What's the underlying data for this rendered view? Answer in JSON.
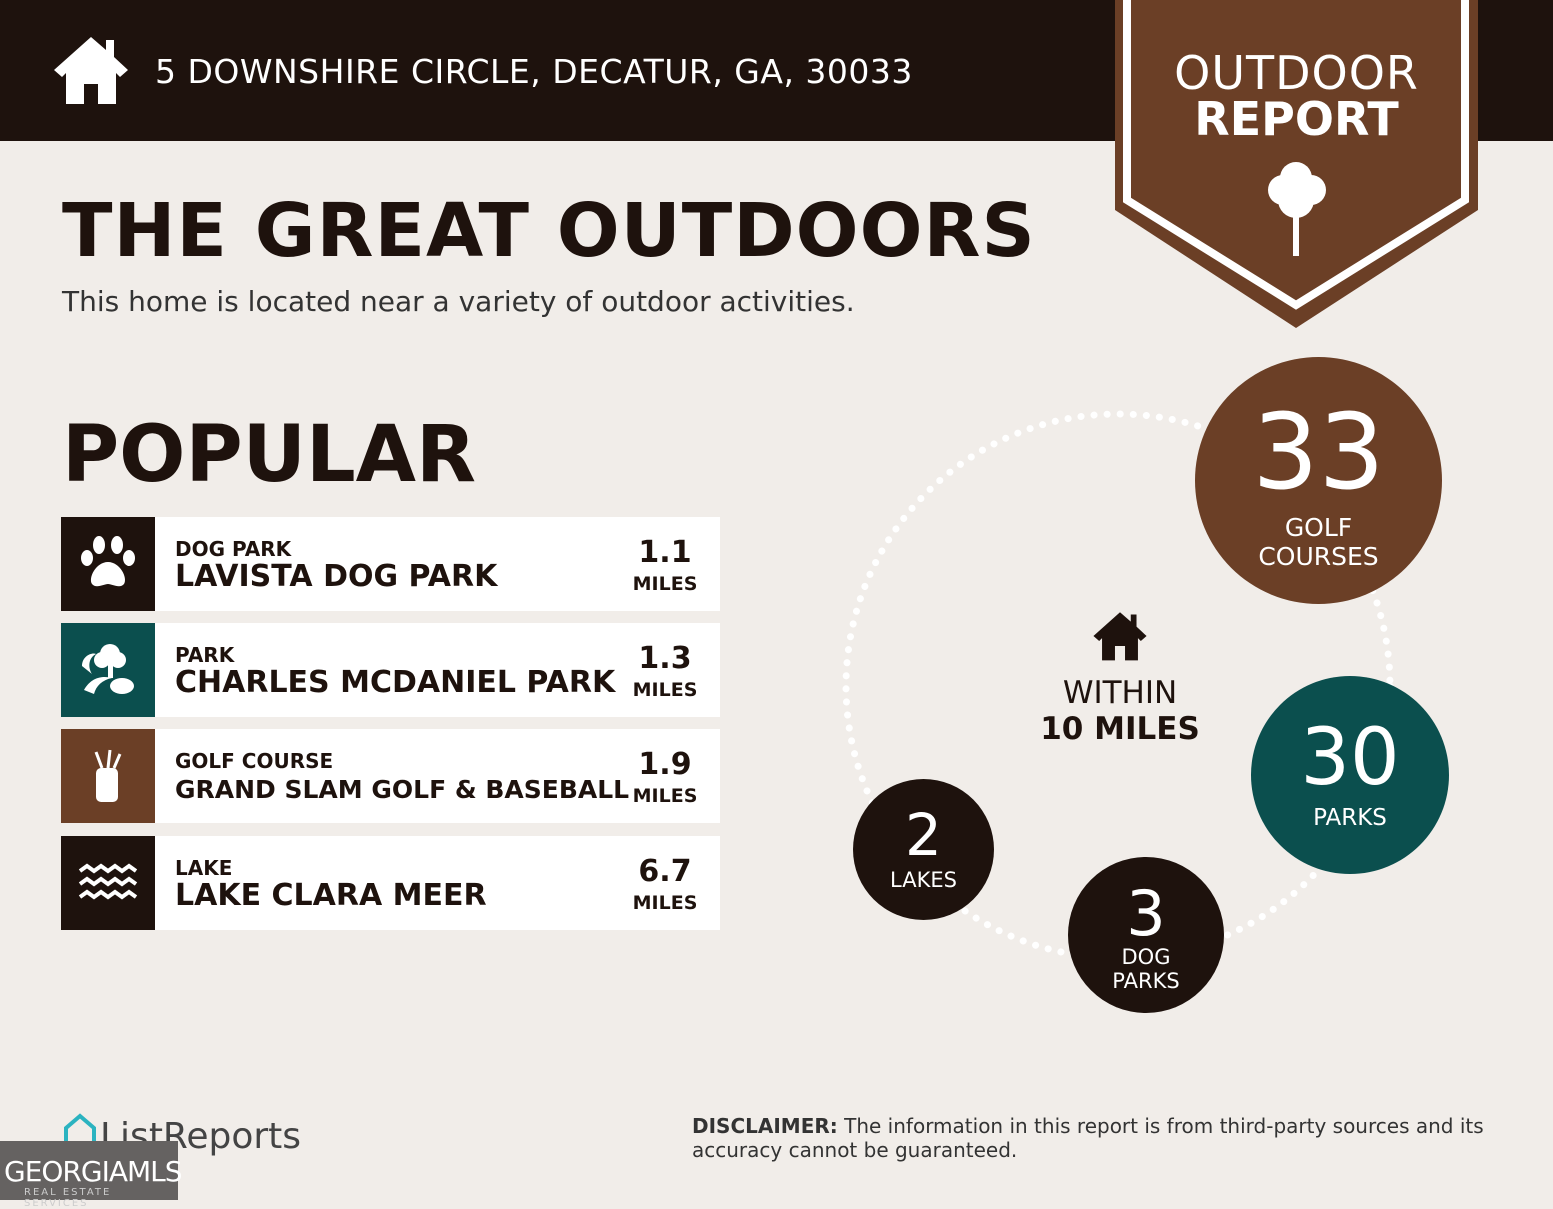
{
  "header": {
    "address": "5 DOWNSHIRE CIRCLE, DECATUR, GA, 30033",
    "icon": "house-icon"
  },
  "badge": {
    "line1": "OUTDOOR",
    "line2": "REPORT",
    "icon": "tree-icon"
  },
  "title": "THE GREAT OUTDOORS",
  "subtitle": "This home is located near a variety of outdoor activities.",
  "popular": {
    "heading": "POPULAR",
    "items": [
      {
        "category": "DOG PARK",
        "name": "LAVISTA DOG PARK",
        "distance": "1.1",
        "unit": "MILES",
        "icon": "paw-icon",
        "color": "#1e120d"
      },
      {
        "category": "PARK",
        "name": "CHARLES MCDANIEL PARK",
        "distance": "1.3",
        "unit": "MILES",
        "icon": "park-icon",
        "color": "#0b4f4e"
      },
      {
        "category": "GOLF COURSE",
        "name": "GRAND SLAM GOLF & BASEBALL",
        "distance": "1.9",
        "unit": "MILES",
        "icon": "golf-bag-icon",
        "color": "#6b3f26"
      },
      {
        "category": "LAKE",
        "name": "LAKE CLARA MEER",
        "distance": "6.7",
        "unit": "MILES",
        "icon": "waves-icon",
        "color": "#1e120d"
      }
    ]
  },
  "within": {
    "line1": "WITHIN",
    "line2": "10 MILES"
  },
  "counts": [
    {
      "value": "33",
      "label1": "GOLF",
      "label2": "COURSES",
      "color": "#6b3f26"
    },
    {
      "value": "30",
      "label1": "PARKS",
      "label2": "",
      "color": "#0b4f4e"
    },
    {
      "value": "3",
      "label1": "DOG",
      "label2": "PARKS",
      "color": "#1e120d"
    },
    {
      "value": "2",
      "label1": "LAKES",
      "label2": "",
      "color": "#1e120d"
    }
  ],
  "footer": {
    "logo": "ListReports",
    "disclaimer_label": "DISCLAIMER:",
    "disclaimer": " The information in this report is from third-party sources and its accuracy cannot be guaranteed.",
    "mls_logo": "GEORGIAMLS",
    "mls_sub": "REAL ESTATE SERVICES"
  }
}
